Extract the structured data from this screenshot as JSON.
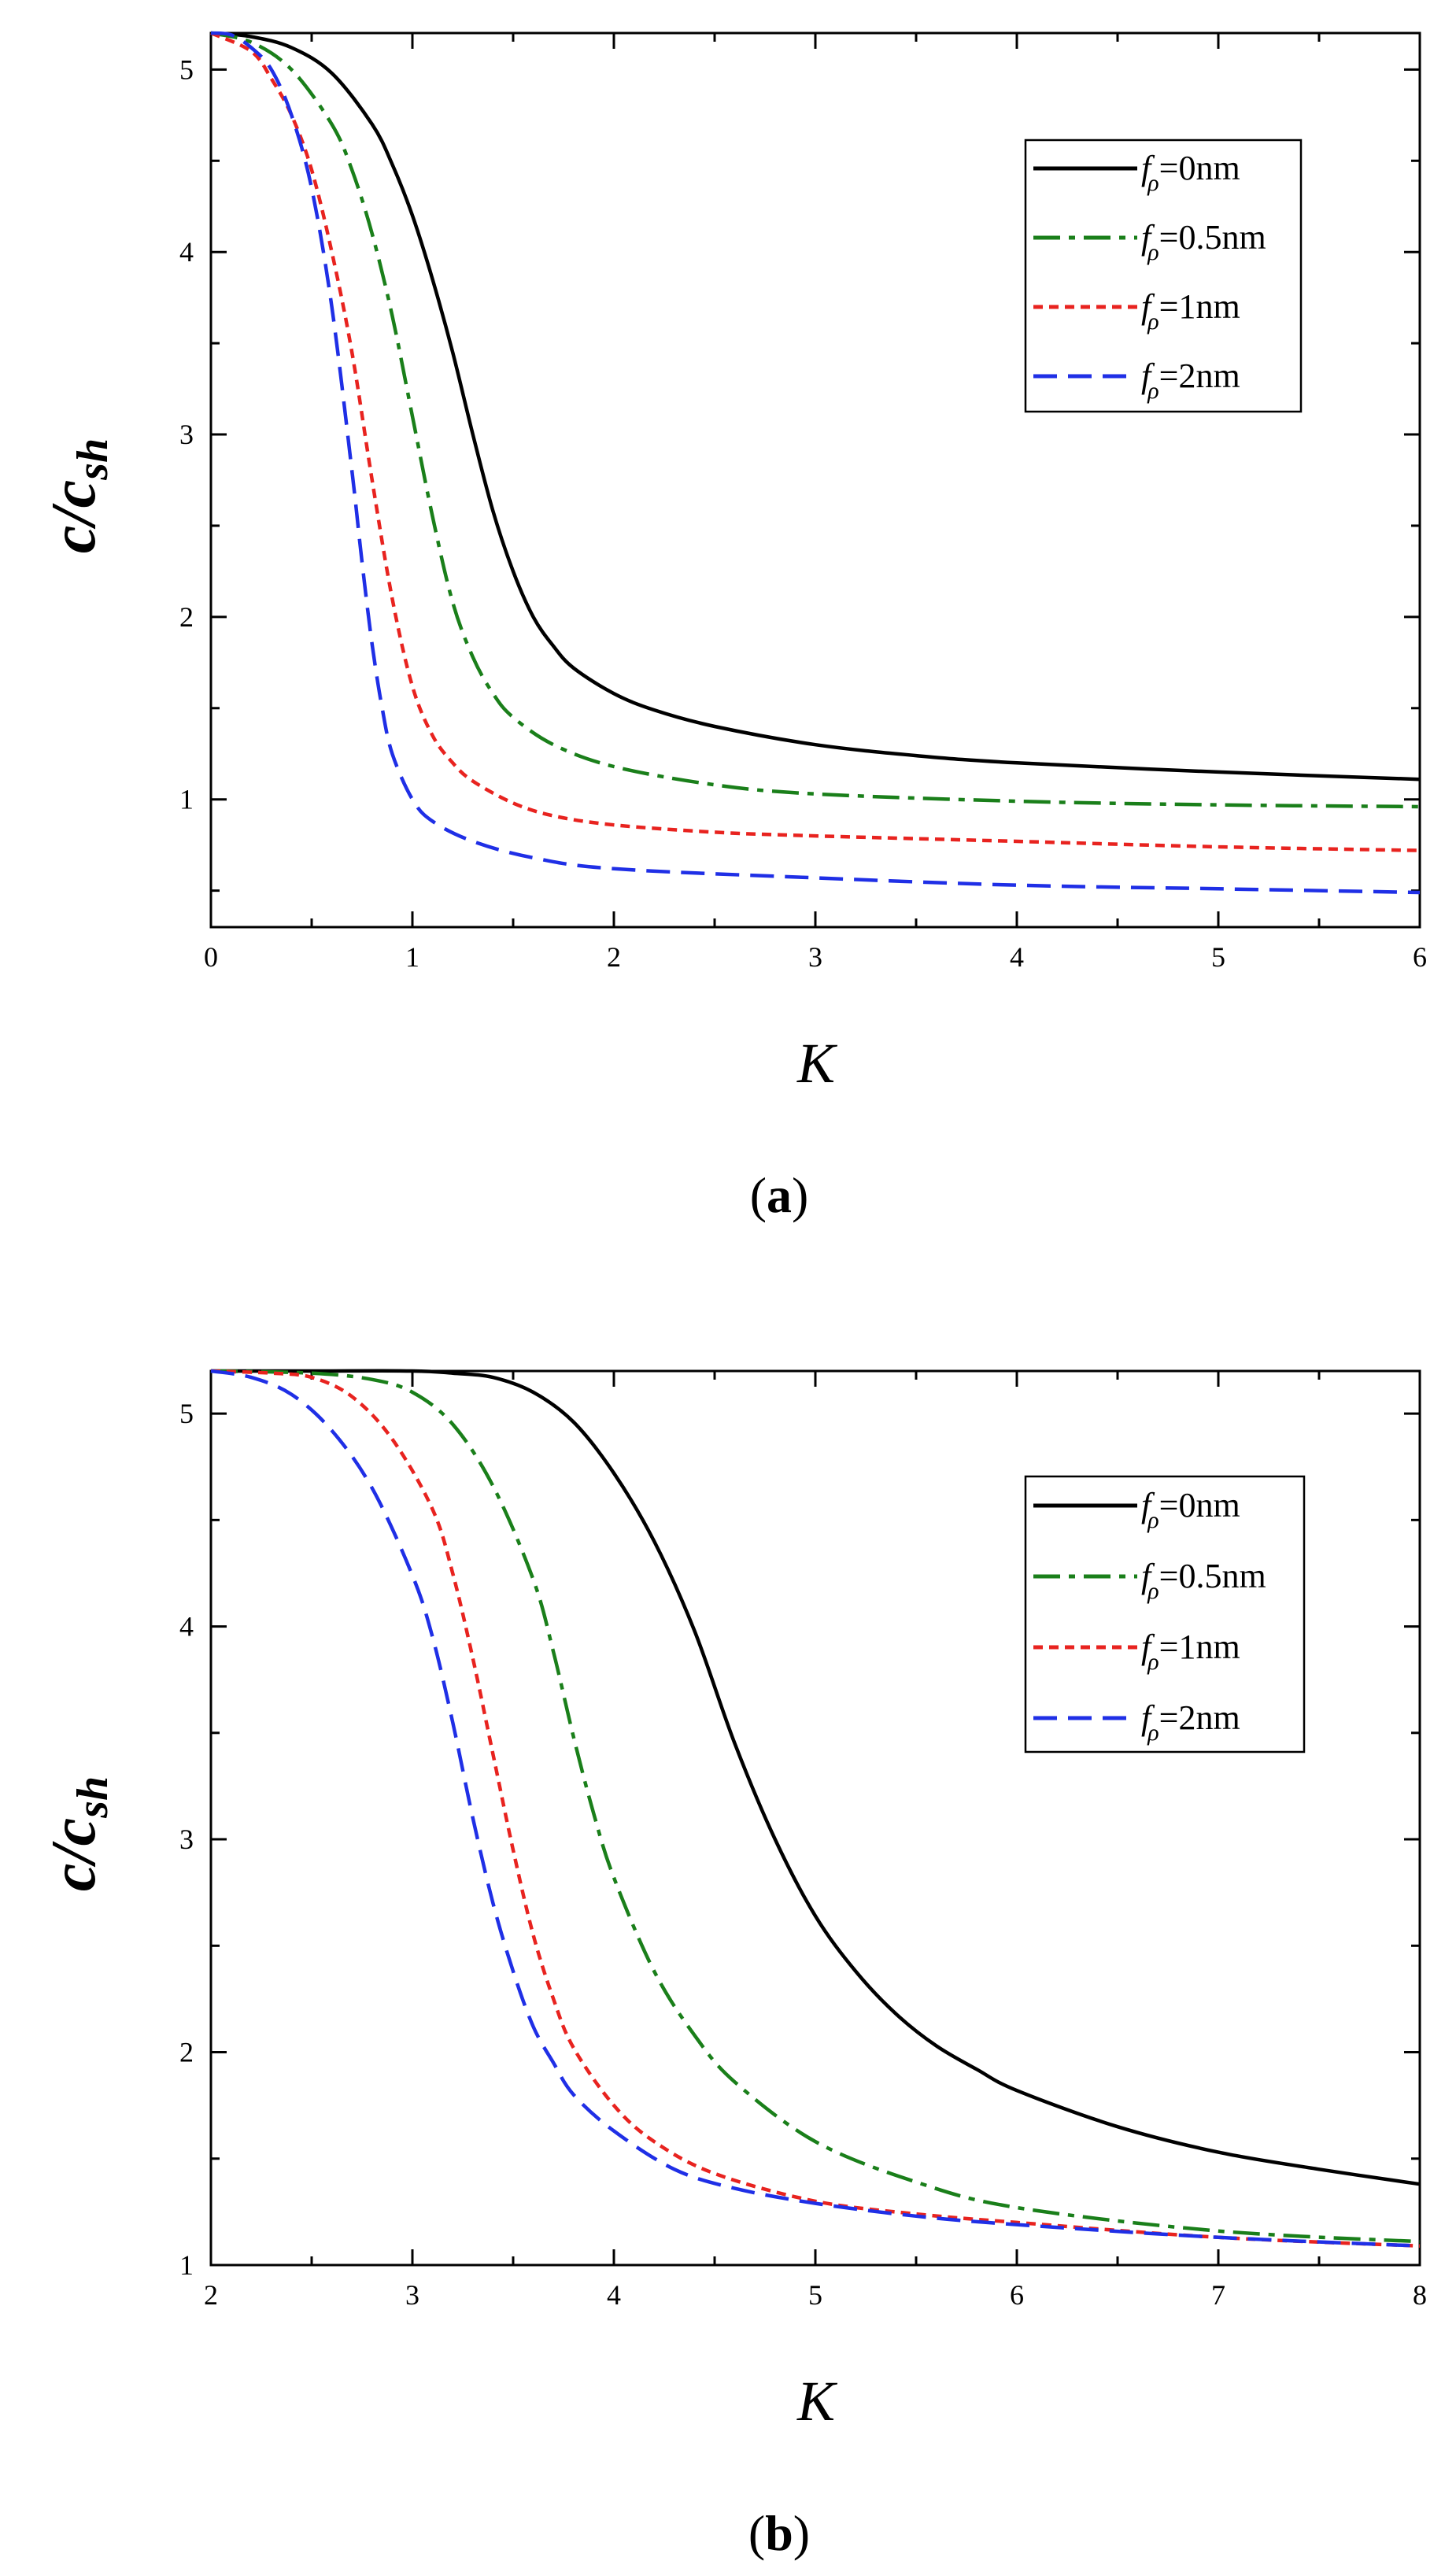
{
  "colors": {
    "f0": "#000000",
    "f05": "#1a7f1a",
    "f1": "#e8231f",
    "f2": "#1f2fe6"
  },
  "chart_data": [
    {
      "type": "line",
      "panel_label": "a",
      "xlabel": "K",
      "ylabel": "c/c",
      "ylabel_sub": "sh",
      "xlim": [
        0,
        6
      ],
      "ylim": [
        0.3,
        5.2
      ],
      "xticks": [
        0,
        1,
        2,
        3,
        4,
        5,
        6
      ],
      "yticks": [
        1,
        2,
        3,
        4,
        5
      ],
      "legend_position": "top-right",
      "series": [
        {
          "name": "f=0nm",
          "legend_f": "f",
          "legend_sub": "ρ",
          "legend_rest": "=0nm",
          "color_key": "f0",
          "dash": "solid",
          "x": [
            0,
            0.2,
            0.4,
            0.6,
            0.8,
            0.9,
            1.0,
            1.1,
            1.2,
            1.3,
            1.4,
            1.5,
            1.6,
            1.7,
            1.8,
            2.0,
            2.2,
            2.5,
            3.0,
            3.5,
            4.0,
            5.0,
            6.0
          ],
          "y": [
            5.2,
            5.18,
            5.12,
            4.98,
            4.7,
            4.48,
            4.2,
            3.85,
            3.45,
            3.0,
            2.58,
            2.25,
            2.0,
            1.84,
            1.72,
            1.58,
            1.49,
            1.4,
            1.3,
            1.24,
            1.2,
            1.15,
            1.11
          ]
        },
        {
          "name": "f=0.5nm",
          "legend_f": "f",
          "legend_sub": "ρ",
          "legend_rest": "=0.5nm",
          "color_key": "f05",
          "dash": "dashdot",
          "x": [
            0,
            0.2,
            0.4,
            0.6,
            0.7,
            0.8,
            0.9,
            1.0,
            1.1,
            1.2,
            1.3,
            1.4,
            1.5,
            1.7,
            2.0,
            2.5,
            3.0,
            4.0,
            5.0,
            6.0
          ],
          "y": [
            5.2,
            5.15,
            5.0,
            4.7,
            4.45,
            4.1,
            3.65,
            3.1,
            2.55,
            2.08,
            1.78,
            1.58,
            1.45,
            1.3,
            1.18,
            1.08,
            1.03,
            0.99,
            0.97,
            0.96
          ]
        },
        {
          "name": "f=1nm",
          "legend_f": "f",
          "legend_sub": "ρ",
          "legend_rest": "=1nm",
          "color_key": "f1",
          "dash": "dotted",
          "x": [
            0,
            0.2,
            0.3,
            0.4,
            0.5,
            0.6,
            0.7,
            0.8,
            0.9,
            1.0,
            1.1,
            1.2,
            1.3,
            1.5,
            1.7,
            2.0,
            2.5,
            3.0,
            4.0,
            5.0,
            6.0
          ],
          "y": [
            5.2,
            5.1,
            4.95,
            4.75,
            4.45,
            4.0,
            3.45,
            2.75,
            2.1,
            1.62,
            1.35,
            1.2,
            1.1,
            0.98,
            0.91,
            0.86,
            0.82,
            0.8,
            0.77,
            0.74,
            0.72
          ]
        },
        {
          "name": "f=2nm",
          "legend_f": "f",
          "legend_sub": "ρ",
          "legend_rest": "=2nm",
          "color_key": "f2",
          "dash": "dashed",
          "x": [
            0,
            0.1,
            0.2,
            0.3,
            0.4,
            0.5,
            0.6,
            0.7,
            0.75,
            0.8,
            0.85,
            0.9,
            1.0,
            1.1,
            1.3,
            1.6,
            2.0,
            3.0,
            4.0,
            5.0,
            6.0
          ],
          "y": [
            5.2,
            5.19,
            5.12,
            5.0,
            4.75,
            4.35,
            3.7,
            2.8,
            2.3,
            1.85,
            1.5,
            1.25,
            1.0,
            0.88,
            0.77,
            0.68,
            0.62,
            0.57,
            0.53,
            0.51,
            0.49
          ]
        }
      ]
    },
    {
      "type": "line",
      "panel_label": "b",
      "xlabel": "K",
      "ylabel": "c/c",
      "ylabel_sub": "sh",
      "xlim": [
        2,
        8
      ],
      "ylim": [
        1,
        5.2
      ],
      "xticks": [
        2,
        3,
        4,
        5,
        6,
        7,
        8
      ],
      "yticks": [
        1,
        2,
        3,
        4,
        5
      ],
      "legend_position": "top-right",
      "series": [
        {
          "name": "f=0nm",
          "legend_f": "f",
          "legend_sub": "ρ",
          "legend_rest": "=0nm",
          "color_key": "f0",
          "dash": "solid",
          "x": [
            2,
            2.5,
            3,
            3.2,
            3.4,
            3.6,
            3.8,
            4.0,
            4.2,
            4.4,
            4.6,
            4.8,
            5.0,
            5.2,
            5.4,
            5.6,
            5.8,
            6.0,
            6.5,
            7.0,
            7.5,
            8.0
          ],
          "y": [
            5.2,
            5.2,
            5.2,
            5.19,
            5.17,
            5.1,
            4.96,
            4.72,
            4.4,
            3.98,
            3.45,
            3.0,
            2.64,
            2.38,
            2.18,
            2.03,
            1.92,
            1.82,
            1.65,
            1.53,
            1.45,
            1.38
          ]
        },
        {
          "name": "f=0.5nm",
          "legend_f": "f",
          "legend_sub": "ρ",
          "legend_rest": "=0.5nm",
          "color_key": "f05",
          "dash": "dashdot",
          "x": [
            2,
            2.5,
            2.8,
            3.0,
            3.2,
            3.4,
            3.6,
            3.7,
            3.8,
            3.9,
            4.0,
            4.2,
            4.4,
            4.6,
            5.0,
            5.5,
            6.0,
            7.0,
            8.0
          ],
          "y": [
            5.2,
            5.19,
            5.16,
            5.1,
            4.95,
            4.66,
            4.22,
            3.88,
            3.48,
            3.12,
            2.82,
            2.38,
            2.08,
            1.86,
            1.58,
            1.39,
            1.27,
            1.16,
            1.11
          ]
        },
        {
          "name": "f=1nm",
          "legend_f": "f",
          "legend_sub": "ρ",
          "legend_rest": "=1nm",
          "color_key": "f1",
          "dash": "dotted",
          "x": [
            2,
            2.3,
            2.5,
            2.7,
            2.9,
            3.1,
            3.2,
            3.3,
            3.4,
            3.5,
            3.6,
            3.7,
            3.8,
            4.0,
            4.2,
            4.5,
            5.0,
            5.5,
            6.0,
            7.0,
            8.0
          ],
          "y": [
            5.2,
            5.19,
            5.17,
            5.08,
            4.88,
            4.55,
            4.25,
            3.85,
            3.4,
            2.95,
            2.55,
            2.25,
            2.02,
            1.75,
            1.58,
            1.43,
            1.3,
            1.24,
            1.2,
            1.13,
            1.09
          ]
        },
        {
          "name": "f=2nm",
          "legend_f": "f",
          "legend_sub": "ρ",
          "legend_rest": "=2nm",
          "color_key": "f2",
          "dash": "dashed",
          "x": [
            2,
            2.2,
            2.4,
            2.6,
            2.8,
            3.0,
            3.1,
            3.2,
            3.3,
            3.4,
            3.5,
            3.6,
            3.7,
            3.8,
            4.0,
            4.3,
            4.6,
            5.0,
            5.5,
            6.0,
            7.0,
            8.0
          ],
          "y": [
            5.2,
            5.17,
            5.09,
            4.92,
            4.65,
            4.24,
            3.95,
            3.55,
            3.1,
            2.7,
            2.38,
            2.12,
            1.95,
            1.8,
            1.63,
            1.45,
            1.36,
            1.29,
            1.23,
            1.19,
            1.13,
            1.09
          ]
        }
      ]
    }
  ]
}
